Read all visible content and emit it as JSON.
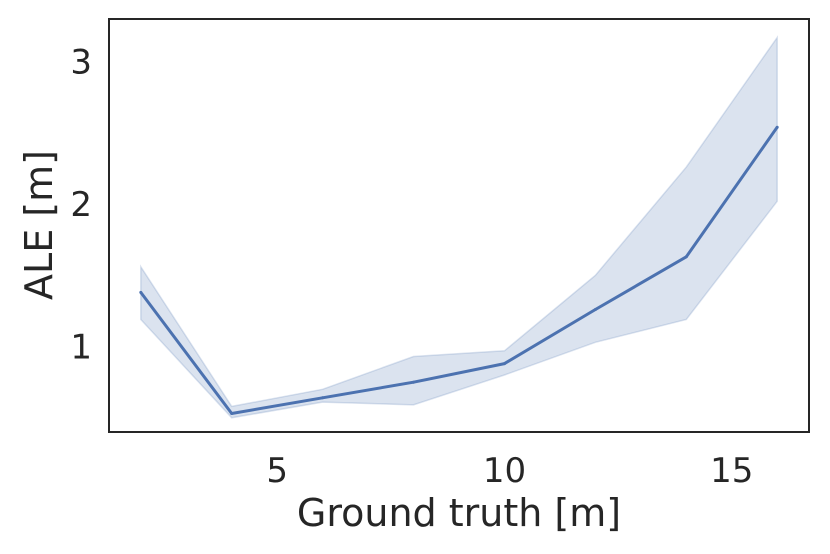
{
  "chart_data": {
    "type": "line",
    "title": "",
    "xlabel": "Ground truth [m]",
    "ylabel": "ALE [m]",
    "xlim": [
      1.3,
      16.7
    ],
    "ylim": [
      0.4,
      3.3
    ],
    "xticks": [
      5,
      10,
      15
    ],
    "yticks": [
      1,
      2,
      3
    ],
    "grid": false,
    "colors": {
      "line": "#4c72b0",
      "band": "#4c72b0",
      "frame": "#262626",
      "text": "#262626"
    },
    "series": [
      {
        "x": [
          2,
          4,
          6,
          8,
          10,
          12,
          14,
          16
        ],
        "y": [
          1.38,
          0.53,
          0.64,
          0.75,
          0.88,
          1.26,
          1.63,
          2.54
        ],
        "lower": [
          1.19,
          0.5,
          0.61,
          0.59,
          0.8,
          1.03,
          1.19,
          2.02
        ],
        "upper": [
          1.56,
          0.58,
          0.7,
          0.93,
          0.97,
          1.5,
          2.26,
          3.17
        ]
      }
    ]
  }
}
